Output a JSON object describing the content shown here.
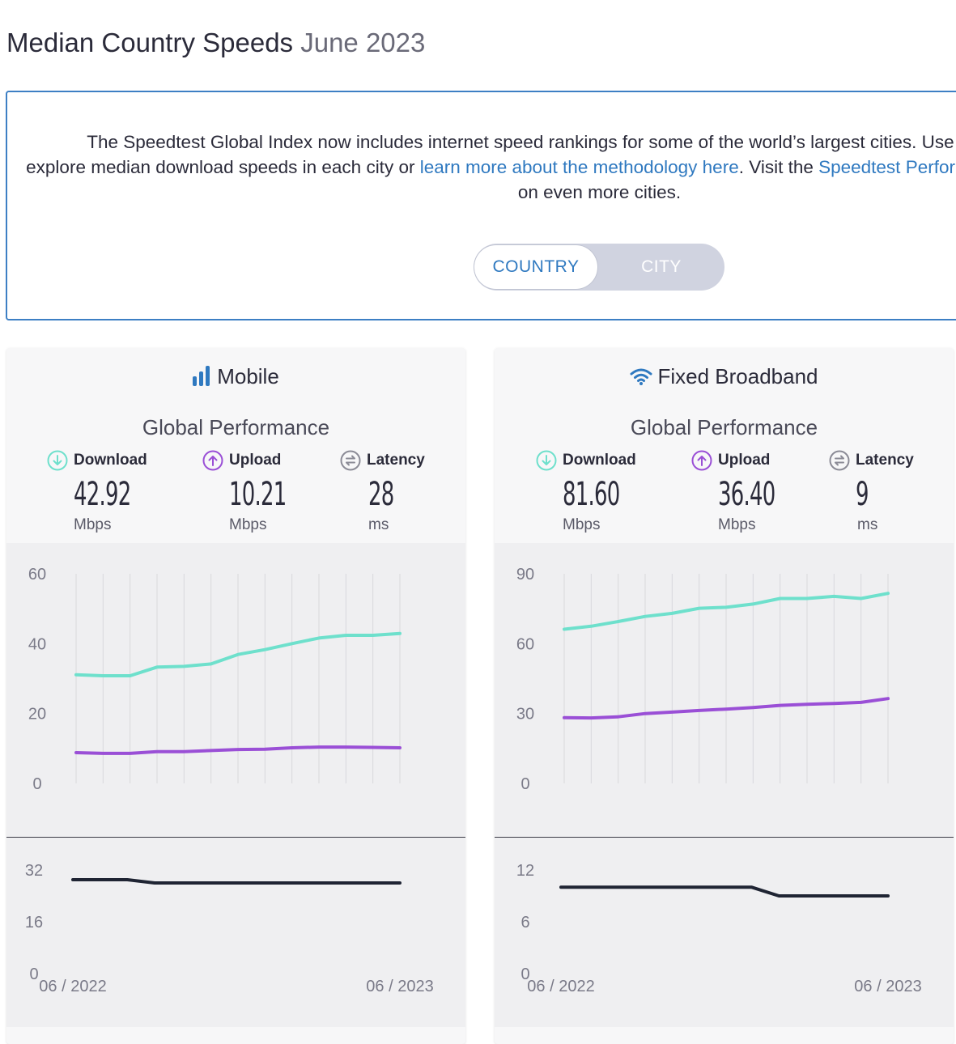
{
  "page": {
    "title": "Median Country Speeds",
    "date": "June 2023"
  },
  "info": {
    "text_1": "The Speedtest Global Index now includes internet speed rankings for some of the world’s largest cities. Use the toggle below to",
    "text_2": "explore median download speeds in each city or ",
    "link_methodology": "learn more about the methodology here",
    "text_3": ". Visit the ",
    "link_directory": "Speedtest Performance Directory",
    "text_4": "™ for data on even more cities."
  },
  "toggle": {
    "country": "COUNTRY",
    "city": "CITY",
    "selected": "COUNTRY"
  },
  "mobile": {
    "title": "Mobile",
    "subtitle": "Global Performance",
    "download": {
      "label": "Download",
      "value": "42.92",
      "unit": "Mbps"
    },
    "upload": {
      "label": "Upload",
      "value": "10.21",
      "unit": "Mbps"
    },
    "latency": {
      "label": "Latency",
      "value": "28",
      "unit": "ms"
    }
  },
  "fixed": {
    "title": "Fixed Broadband",
    "subtitle": "Global Performance",
    "download": {
      "label": "Download",
      "value": "81.60",
      "unit": "Mbps"
    },
    "upload": {
      "label": "Upload",
      "value": "36.40",
      "unit": "Mbps"
    },
    "latency": {
      "label": "Latency",
      "value": "9",
      "unit": "ms"
    }
  },
  "colors": {
    "download": "#6ee0cc",
    "upload": "#9a4fd6",
    "latency": "#1f2433",
    "link": "#2f79c0",
    "accent": "#3d7fc4"
  },
  "chart_data": [
    {
      "type": "line",
      "name": "mobile-speed",
      "series": [
        {
          "name": "Download",
          "values": [
            31.1,
            30.8,
            30.8,
            33.3,
            33.5,
            34.2,
            36.9,
            38.3,
            40.0,
            41.6,
            42.4,
            42.4,
            42.9
          ]
        },
        {
          "name": "Upload",
          "values": [
            8.8,
            8.6,
            8.6,
            9.1,
            9.1,
            9.4,
            9.7,
            9.8,
            10.2,
            10.4,
            10.4,
            10.3,
            10.2
          ]
        }
      ],
      "ylim": [
        0,
        60
      ],
      "yticks": [
        0,
        20,
        40,
        60
      ]
    },
    {
      "type": "line",
      "name": "mobile-latency",
      "series": [
        {
          "name": "Latency",
          "values": [
            29,
            29,
            29,
            28,
            28,
            28,
            28,
            28,
            28,
            28,
            28,
            28,
            28
          ]
        }
      ],
      "ylim": [
        0,
        32
      ],
      "yticks": [
        0,
        16,
        32
      ],
      "xlabels": [
        "06 / 2022",
        "06 / 2023"
      ]
    },
    {
      "type": "line",
      "name": "fixed-speed",
      "series": [
        {
          "name": "Download",
          "values": [
            66.2,
            67.5,
            69.5,
            71.7,
            73.0,
            75.2,
            75.6,
            77.0,
            79.4,
            79.4,
            80.3,
            79.4,
            81.6
          ]
        },
        {
          "name": "Upload",
          "values": [
            28.2,
            28.1,
            28.6,
            30.0,
            30.6,
            31.3,
            31.9,
            32.6,
            33.5,
            34.0,
            34.3,
            34.8,
            36.4
          ]
        }
      ],
      "ylim": [
        0,
        90
      ],
      "yticks": [
        0,
        30,
        60,
        90
      ]
    },
    {
      "type": "line",
      "name": "fixed-latency",
      "series": [
        {
          "name": "Latency",
          "values": [
            10,
            10,
            10,
            10,
            10,
            10,
            10,
            10,
            9,
            9,
            9,
            9,
            9
          ]
        }
      ],
      "ylim": [
        0,
        12
      ],
      "yticks": [
        0,
        6,
        12
      ],
      "xlabels": [
        "06 / 2022",
        "06 / 2023"
      ]
    }
  ]
}
